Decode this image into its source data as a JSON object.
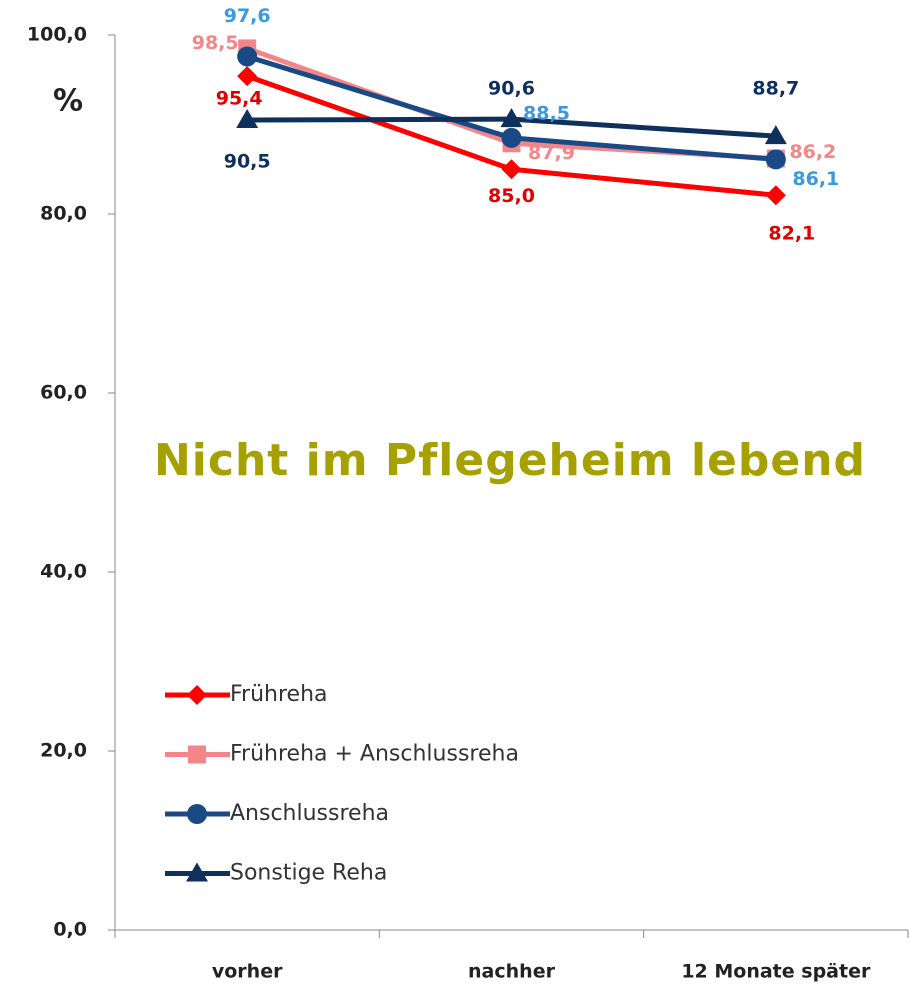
{
  "chart_data": {
    "type": "line",
    "annotation": "Nicht im Pflegeheim lebend",
    "ylabel": "%",
    "categories": [
      "vorher",
      "nachher",
      "12 Monate später"
    ],
    "series": [
      {
        "name": "Frühreha",
        "color": "#ff0000",
        "label_color": "#e00000",
        "marker": "diamond",
        "values": [
          95.4,
          85.0,
          82.1
        ],
        "value_labels": [
          "95,4",
          "85,0",
          "82,1"
        ]
      },
      {
        "name": "Frühreha + Anschlussreha",
        "color": "#f4868a",
        "label_color": "#f4868a",
        "marker": "square",
        "values": [
          98.5,
          87.9,
          86.2
        ],
        "value_labels": [
          "98,5",
          "87,9",
          "86,2"
        ]
      },
      {
        "name": "Anschlussreha",
        "color": "#1a4a86",
        "label_color": "#3a9ae0",
        "marker": "circle",
        "values": [
          97.6,
          88.5,
          86.1
        ],
        "value_labels": [
          "97,6",
          "88,5",
          "86,1"
        ]
      },
      {
        "name": "Sonstige Reha",
        "color": "#0f2f5c",
        "label_color": "#0f2f5c",
        "marker": "triangle",
        "values": [
          90.5,
          90.6,
          88.7
        ],
        "value_labels": [
          "90,5",
          "90,6",
          "88,7"
        ]
      }
    ],
    "ylim": [
      0,
      100
    ],
    "yticks": [
      {
        "value": 0,
        "label": "0,0"
      },
      {
        "value": 20,
        "label": "20,0"
      },
      {
        "value": 40,
        "label": "40,0"
      },
      {
        "value": 60,
        "label": "60,0"
      },
      {
        "value": 80,
        "label": "80,0"
      },
      {
        "value": 100,
        "label": "100,0"
      }
    ],
    "grid": false
  }
}
